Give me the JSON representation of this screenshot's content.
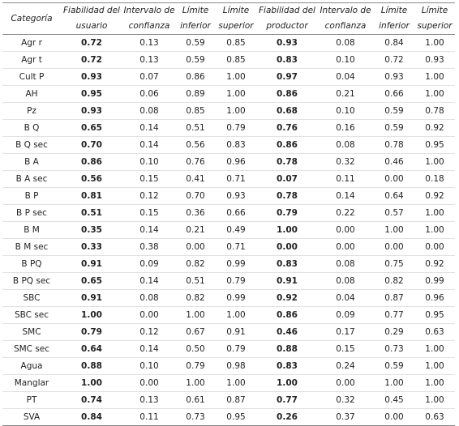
{
  "table": {
    "header": [
      [
        "Categoría"
      ],
      [
        "Fiabilidad del",
        "usuario"
      ],
      [
        "Intervalo de",
        "confianza"
      ],
      [
        "Límite",
        "inferior"
      ],
      [
        "Límite",
        "superior"
      ],
      [
        "Fiabilidad del",
        "productor"
      ],
      [
        "Intervalo de",
        "confianza"
      ],
      [
        "Límite",
        "inferior"
      ],
      [
        "Límite",
        "superior"
      ]
    ],
    "rows": [
      [
        "Agr r",
        "0.72",
        "0.13",
        "0.59",
        "0.85",
        "0.93",
        "0.08",
        "0.84",
        "1.00"
      ],
      [
        "Agr t",
        "0.72",
        "0.13",
        "0.59",
        "0.85",
        "0.83",
        "0.10",
        "0.72",
        "0.93"
      ],
      [
        "Cult P",
        "0.93",
        "0.07",
        "0.86",
        "1.00",
        "0.97",
        "0.04",
        "0.93",
        "1.00"
      ],
      [
        "AH",
        "0.95",
        "0.06",
        "0.89",
        "1.00",
        "0.86",
        "0.21",
        "0.66",
        "1.00"
      ],
      [
        "Pz",
        "0.93",
        "0.08",
        "0.85",
        "1.00",
        "0.68",
        "0.10",
        "0.59",
        "0.78"
      ],
      [
        "B Q",
        "0.65",
        "0.14",
        "0.51",
        "0.79",
        "0.76",
        "0.16",
        "0.59",
        "0.92"
      ],
      [
        "B Q sec",
        "0.70",
        "0.14",
        "0.56",
        "0.83",
        "0.86",
        "0.08",
        "0.78",
        "0.95"
      ],
      [
        "B A",
        "0.86",
        "0.10",
        "0.76",
        "0.96",
        "0.78",
        "0.32",
        "0.46",
        "1.00"
      ],
      [
        "B A sec",
        "0.56",
        "0.15",
        "0.41",
        "0.71",
        "0.07",
        "0.11",
        "0.00",
        "0.18"
      ],
      [
        "B P",
        "0.81",
        "0.12",
        "0.70",
        "0.93",
        "0.78",
        "0.14",
        "0.64",
        "0.92"
      ],
      [
        "B P sec",
        "0.51",
        "0.15",
        "0.36",
        "0.66",
        "0.79",
        "0.22",
        "0.57",
        "1.00"
      ],
      [
        "B M",
        "0.35",
        "0.14",
        "0.21",
        "0.49",
        "1.00",
        "0.00",
        "1.00",
        "1.00"
      ],
      [
        "B M sec",
        "0.33",
        "0.38",
        "0.00",
        "0.71",
        "0.00",
        "0.00",
        "0.00",
        "0.00"
      ],
      [
        "B PQ",
        "0.91",
        "0.09",
        "0.82",
        "0.99",
        "0.83",
        "0.08",
        "0.75",
        "0.92"
      ],
      [
        "B PQ sec",
        "0.65",
        "0.14",
        "0.51",
        "0.79",
        "0.91",
        "0.08",
        "0.82",
        "0.99"
      ],
      [
        "SBC",
        "0.91",
        "0.08",
        "0.82",
        "0.99",
        "0.92",
        "0.04",
        "0.87",
        "0.96"
      ],
      [
        "SBC sec",
        "1.00",
        "0.00",
        "1.00",
        "1.00",
        "0.86",
        "0.09",
        "0.77",
        "0.95"
      ],
      [
        "SMC",
        "0.79",
        "0.12",
        "0.67",
        "0.91",
        "0.46",
        "0.17",
        "0.29",
        "0.63"
      ],
      [
        "SMC sec",
        "0.64",
        "0.14",
        "0.50",
        "0.79",
        "0.88",
        "0.15",
        "0.73",
        "1.00"
      ],
      [
        "Agua",
        "0.88",
        "0.10",
        "0.79",
        "0.98",
        "0.83",
        "0.24",
        "0.59",
        "1.00"
      ],
      [
        "Manglar",
        "1.00",
        "0.00",
        "1.00",
        "1.00",
        "1.00",
        "0.00",
        "1.00",
        "1.00"
      ],
      [
        "PT",
        "0.74",
        "0.13",
        "0.61",
        "0.87",
        "0.77",
        "0.32",
        "0.45",
        "1.00"
      ],
      [
        "SVA",
        "0.84",
        "0.11",
        "0.73",
        "0.95",
        "0.26",
        "0.37",
        "0.00",
        "0.63"
      ]
    ]
  }
}
